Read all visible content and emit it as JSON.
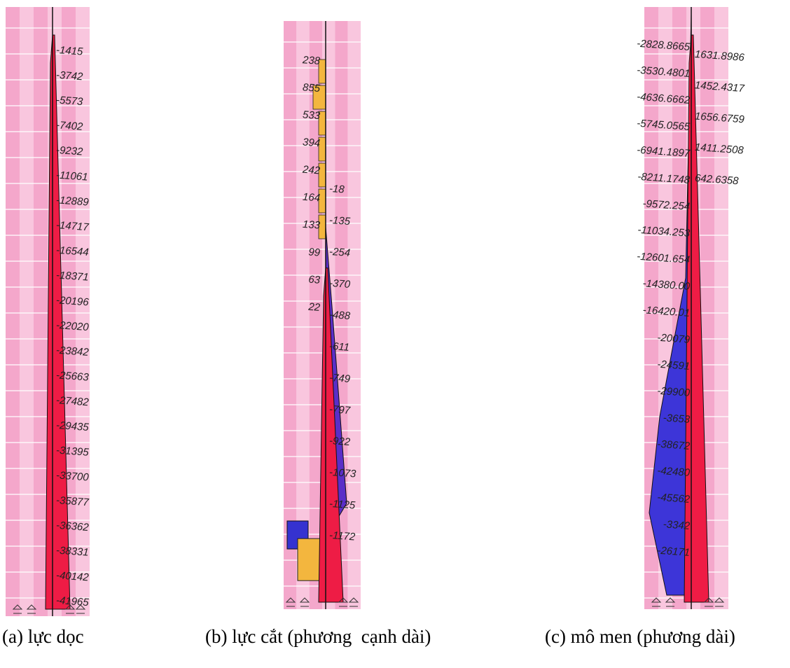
{
  "panels": [
    {
      "caption": "(a) lực dọc",
      "labels_right": [
        "-1415",
        "-3742",
        "-5573",
        "-7402",
        "-9232",
        "-11061",
        "-12889",
        "-14717",
        "-16544",
        "-18371",
        "-20196",
        "-22020",
        "-23842",
        "-25663",
        "-27482",
        "-29435",
        "-31395",
        "-33700",
        "-35877",
        "-36362",
        "-38331",
        "-40142",
        "-41965"
      ]
    },
    {
      "caption": "(b) lực cắt (phương  cạnh dài)",
      "labels_left": [
        "238",
        "855",
        "533",
        "394",
        "242",
        "164",
        "133",
        "99",
        "63",
        "22"
      ],
      "labels_right": [
        "-18",
        "-135",
        "-254",
        "-370",
        "-488",
        "-611",
        "-749",
        "-797",
        "-922",
        "-1073",
        "-1125",
        "-1172"
      ]
    },
    {
      "caption": "(c) mô men (phương dài)",
      "labels_left": [
        "-2828.8665",
        "-3530.4801",
        "-4636.6662",
        "-5745.0565",
        "-6941.1897",
        "-8211.1748",
        "-9572.254",
        "-11034.253",
        "-12601.654",
        "-14380.00",
        "-16420.01",
        "-20079",
        "-24591",
        "-29900",
        "-3653",
        "-38672",
        "-42480",
        "-45562",
        "-3342",
        "-26171"
      ],
      "labels_right": [
        "1631.8986",
        "1452.4317",
        "1656.6759",
        "1411.2508",
        "642.6358"
      ]
    }
  ]
}
